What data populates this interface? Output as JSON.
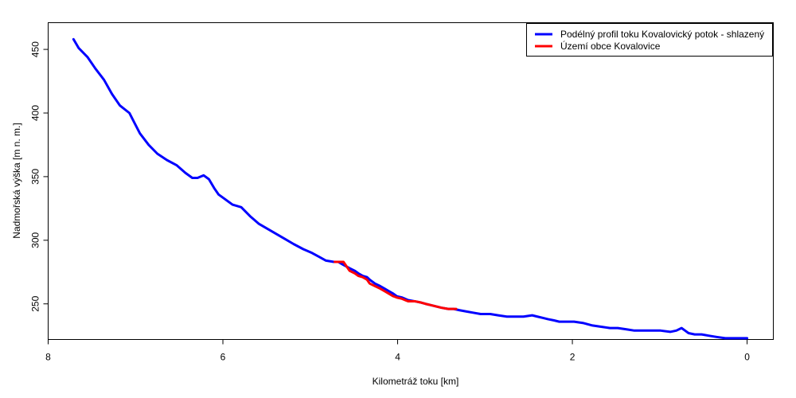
{
  "chart_data": {
    "type": "line",
    "title": "",
    "xlabel": "Kilometráž toku [km]",
    "ylabel": "Nadmořská výška [m n. m.]",
    "xlim": [
      8.0,
      -0.3
    ],
    "ylim": [
      222.0,
      471.0
    ],
    "x_ticks": [
      8,
      6,
      4,
      2,
      0
    ],
    "y_ticks": [
      250,
      300,
      350,
      400,
      450
    ],
    "grid": false,
    "legend_position": "top-right",
    "series": [
      {
        "name": "Podélný profil toku Kovalovický potok - shlazený",
        "color": "#0000FF",
        "line_width": 3,
        "x": [
          7.71,
          7.65,
          7.55,
          7.46,
          7.36,
          7.27,
          7.18,
          7.07,
          7.01,
          6.95,
          6.85,
          6.75,
          6.64,
          6.53,
          6.43,
          6.35,
          6.29,
          6.22,
          6.16,
          6.1,
          6.05,
          5.99,
          5.89,
          5.79,
          5.69,
          5.59,
          5.49,
          5.39,
          5.29,
          5.19,
          5.08,
          4.98,
          4.9,
          4.82,
          4.73,
          4.68,
          4.63,
          4.55,
          4.49,
          4.45,
          4.4,
          4.35,
          4.32,
          4.26,
          4.2,
          4.15,
          4.1,
          4.05,
          4.01,
          3.95,
          3.88,
          3.8,
          3.73,
          3.68,
          3.62,
          3.56,
          3.5,
          3.42,
          3.36,
          3.29,
          3.21,
          3.13,
          3.05,
          2.94,
          2.85,
          2.75,
          2.65,
          2.56,
          2.46,
          2.4,
          2.34,
          2.28,
          2.21,
          2.15,
          2.07,
          1.98,
          1.88,
          1.77,
          1.67,
          1.57,
          1.48,
          1.38,
          1.29,
          1.19,
          1.09,
          0.99,
          0.88,
          0.81,
          0.75,
          0.71,
          0.67,
          0.6,
          0.52,
          0.44,
          0.35,
          0.25,
          0.15,
          0.08,
          0.0
        ],
        "y": [
          458,
          451,
          444,
          435,
          426,
          415,
          406,
          400,
          392,
          384,
          375,
          368,
          363,
          359,
          353,
          349,
          349,
          351,
          348,
          341,
          336,
          333,
          328,
          326,
          319,
          313,
          309,
          305,
          301,
          297,
          293,
          290,
          287,
          284,
          283,
          283,
          281,
          278,
          276,
          274,
          272,
          271,
          269,
          266,
          264,
          262,
          260,
          258,
          256,
          255,
          253,
          252,
          251,
          250,
          249,
          248,
          247,
          246,
          246,
          245,
          244,
          243,
          242,
          242,
          241,
          240,
          240,
          240,
          241,
          240,
          239,
          238,
          237,
          236,
          236,
          236,
          235,
          233,
          232,
          231,
          231,
          230,
          229,
          229,
          229,
          229,
          228,
          229,
          231,
          229,
          227,
          226,
          226,
          225,
          224,
          223,
          223,
          223,
          223
        ]
      },
      {
        "name": "Území obce Kovalovice",
        "color": "#FF0000",
        "line_width": 3,
        "x": [
          4.72,
          4.62,
          4.58,
          4.55,
          4.49,
          4.45,
          4.4,
          4.35,
          4.32,
          4.26,
          4.2,
          4.15,
          4.1,
          4.05,
          4.01,
          3.95,
          3.88,
          3.8,
          3.73,
          3.68,
          3.62,
          3.56,
          3.5,
          3.42,
          3.33
        ],
        "y": [
          283,
          283,
          279,
          276,
          274,
          272,
          271,
          269,
          266,
          264,
          262,
          260,
          258,
          256,
          255,
          254,
          252,
          252,
          251,
          250,
          249,
          248,
          247,
          246,
          246
        ]
      }
    ]
  }
}
